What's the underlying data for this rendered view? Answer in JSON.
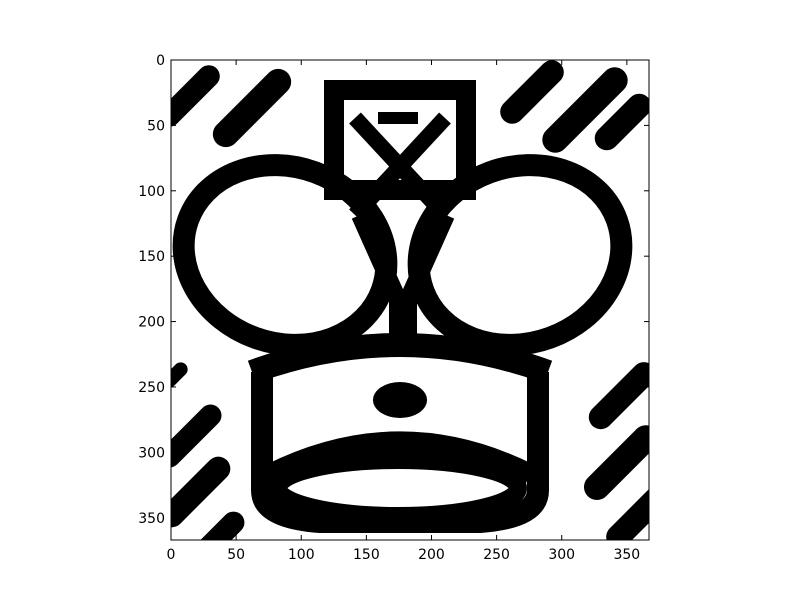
{
  "image": {
    "description_icon": "chess-king-icon",
    "colors": {
      "ink": "#000000",
      "paper": "#ffffff",
      "frame": "#000000"
    }
  },
  "axes": {
    "x_ticks": [
      0,
      50,
      100,
      150,
      200,
      250,
      300,
      350
    ],
    "y_ticks": [
      0,
      50,
      100,
      150,
      200,
      250,
      300,
      350
    ],
    "x_range": [
      0,
      367
    ],
    "y_range": [
      0,
      367
    ],
    "y_inverted": true
  }
}
